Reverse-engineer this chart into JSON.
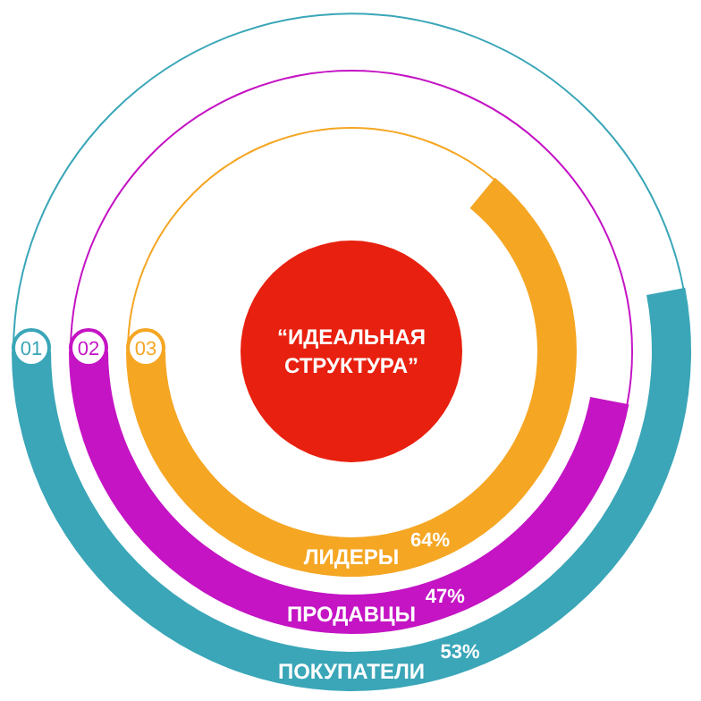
{
  "chart_data": {
    "type": "other",
    "title": "“ИДЕАЛЬНАЯ СТРУКТУРА”",
    "categories": [
      "ПОКУПАТЕЛИ",
      "ПРОДАВЦЫ",
      "ЛИДЕРЫ"
    ],
    "values": [
      53,
      47,
      64
    ],
    "value_labels": [
      "53%",
      "47%",
      "64%"
    ],
    "colors": [
      "#3aa6b8",
      "#c414c4",
      "#f5a623"
    ],
    "annotations": [
      "01",
      "02",
      "03"
    ]
  }
}
